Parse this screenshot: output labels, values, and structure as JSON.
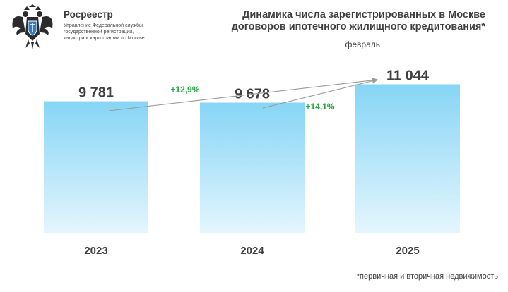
{
  "header": {
    "org_name": "Росреестр",
    "org_sub_lines": [
      "Управление Федеральной службы",
      "государственной регистрации,",
      "кадастра и картографии по Москве"
    ],
    "logo_icon": "double-headed-eagle-emblem-icon"
  },
  "chart_data": {
    "type": "bar",
    "title_lines": [
      "Динамика числа зарегистрированных в Москве",
      "договоров ипотечного жилищного кредитования*"
    ],
    "subtitle": "февраль",
    "categories": [
      "2023",
      "2024",
      "2025"
    ],
    "values": [
      9781,
      9678,
      11044
    ],
    "value_labels": [
      "9 781",
      "9 678",
      "11 044"
    ],
    "ylim": [
      0,
      11700
    ],
    "grid": false,
    "bar_gradient": {
      "top": "#86d5f6",
      "bottom": "#e4f6fd"
    },
    "annotations": [
      {
        "from": "2023",
        "to": "2025",
        "text": "+12,9%",
        "color": "#23a33f"
      },
      {
        "from": "2024",
        "to": "2025",
        "text": "+14,1%",
        "color": "#23a33f"
      }
    ],
    "footnote": "*первичная и вторичная недвижимость"
  }
}
